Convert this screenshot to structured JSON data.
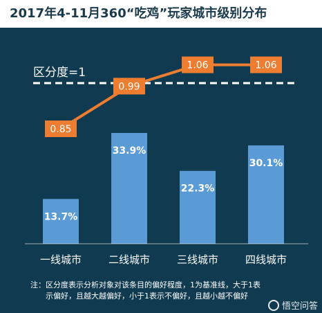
{
  "title": "2017年4-11月360“吃鸡”玩家城市级别分布",
  "baseline_label": "区分度=1",
  "footnote": {
    "line1": "注：区分度表示分析对象对该条目的偏好程度，1为基准线，大于1表",
    "line2": "示偏好，且越大越偏好，小于1表示不偏好，且越小越不偏好"
  },
  "watermark": "悟空问答",
  "colors": {
    "background": "#0f3a4f",
    "bar": "#5b9bd5",
    "line": "#ed7d31",
    "text": "#ffffff"
  },
  "chart_data": {
    "type": "bar",
    "categories": [
      "一线城市",
      "二线城市",
      "三线城市",
      "四线城市"
    ],
    "series": [
      {
        "values": [
          13.7,
          33.9,
          22.3,
          30.1
        ],
        "labels": [
          "13.7%",
          "33.9%",
          "22.3%",
          "30.1%"
        ]
      },
      {
        "type": "line",
        "values": [
          0.85,
          0.99,
          1.06,
          1.06
        ],
        "labels": [
          "0.85",
          "0.99",
          "1.06",
          "1.06"
        ]
      }
    ],
    "baseline": 1,
    "grid": false,
    "legend": "none"
  }
}
